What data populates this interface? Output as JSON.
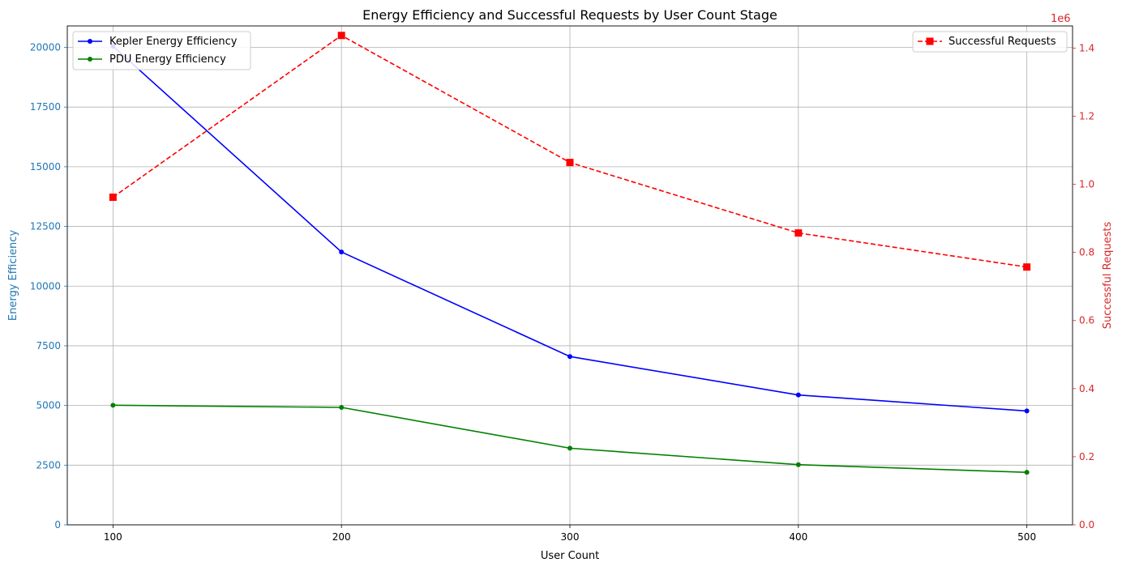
{
  "chart_data": {
    "type": "line",
    "title": "Energy Efficiency and Successful Requests by User Count Stage",
    "xlabel": "User Count",
    "ylabel_left": "Energy Efficiency",
    "ylabel_right": "Successful Requests",
    "right_axis_offset_text": "1e6",
    "x": [
      100,
      200,
      300,
      400,
      500
    ],
    "x_ticks": [
      100,
      200,
      300,
      400,
      500
    ],
    "xlim": [
      80,
      520
    ],
    "ylim_left": [
      0,
      20900
    ],
    "ylim_right": [
      0,
      1.465
    ],
    "y_ticks_left": [
      0,
      2500,
      5000,
      7500,
      10000,
      12500,
      15000,
      17500,
      20000
    ],
    "y_ticks_right": [
      "0.0",
      "0.2",
      "0.4",
      "0.6",
      "0.8",
      "1.0",
      "1.2",
      "1.4"
    ],
    "grid": true,
    "series_left": [
      {
        "name": "Kepler Energy Efficiency",
        "color": "#0000ff",
        "marker": "circle",
        "values": [
          20050,
          11430,
          7050,
          5440,
          4770
        ]
      },
      {
        "name": "PDU Energy Efficiency",
        "color": "#008000",
        "marker": "circle",
        "values": [
          5010,
          4920,
          3210,
          2520,
          2200
        ]
      }
    ],
    "series_right": [
      {
        "name": "Successful Requests",
        "color": "#ff0000",
        "marker": "square",
        "dashed": true,
        "values": [
          0.962,
          1.437,
          1.064,
          0.857,
          0.757
        ]
      }
    ],
    "legend_left_position": "top-left",
    "legend_right_position": "top-right",
    "axis_colors": {
      "left": "#1f77b4",
      "right": "#d62728"
    }
  }
}
